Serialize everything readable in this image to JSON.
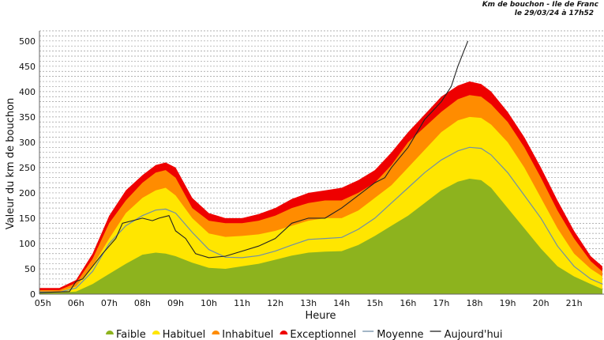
{
  "header": {
    "title": "Km de bouchon - Ile de Franc",
    "subtitle": "le 29/03/24 à 17h52"
  },
  "chart_data": {
    "type": "area",
    "xlabel": "Heure",
    "ylabel": "Valeur du  km de bouchon",
    "ylim": [
      0,
      520
    ],
    "xlim": [
      4.9,
      21.9
    ],
    "yticks": [
      0,
      50,
      100,
      150,
      200,
      250,
      300,
      350,
      400,
      450,
      500
    ],
    "xticks": [
      {
        "v": 5,
        "label": "05h"
      },
      {
        "v": 6,
        "label": "06h"
      },
      {
        "v": 7,
        "label": "07h"
      },
      {
        "v": 8,
        "label": "08h"
      },
      {
        "v": 9,
        "label": "09h"
      },
      {
        "v": 10,
        "label": "10h"
      },
      {
        "v": 11,
        "label": "11h"
      },
      {
        "v": 12,
        "label": "12h"
      },
      {
        "v": 13,
        "label": "13h"
      },
      {
        "v": 14,
        "label": "14h"
      },
      {
        "v": 15,
        "label": "15h"
      },
      {
        "v": 16,
        "label": "16h"
      },
      {
        "v": 17,
        "label": "17h"
      },
      {
        "v": 18,
        "label": "18h"
      },
      {
        "v": 19,
        "label": "19h"
      },
      {
        "v": 20,
        "label": "20h"
      },
      {
        "v": 21,
        "label": "21h"
      }
    ],
    "grid": "horizontal dashed every 10",
    "legend_position": "bottom",
    "x": [
      4.9,
      5.5,
      6,
      6.5,
      7,
      7.5,
      8,
      8.4,
      8.7,
      9,
      9.5,
      10,
      10.5,
      11,
      11.5,
      12,
      12.5,
      13,
      13.5,
      14,
      14.5,
      15,
      15.5,
      16,
      16.5,
      17,
      17.5,
      17.85,
      18.2,
      18.5,
      19,
      19.5,
      20,
      20.5,
      21,
      21.5,
      21.85
    ],
    "series": [
      {
        "name": "Exceptionnel",
        "color": "#ee0000",
        "kind": "area",
        "values": [
          12,
          12,
          28,
          80,
          155,
          205,
          235,
          255,
          260,
          250,
          190,
          160,
          150,
          150,
          158,
          170,
          188,
          200,
          205,
          210,
          225,
          245,
          280,
          320,
          355,
          390,
          412,
          420,
          415,
          400,
          360,
          310,
          250,
          185,
          125,
          75,
          55
        ]
      },
      {
        "name": "Inhabituel",
        "color": "#ff8c00",
        "kind": "area",
        "values": [
          8,
          8,
          22,
          70,
          140,
          185,
          220,
          240,
          245,
          230,
          170,
          145,
          140,
          140,
          145,
          155,
          170,
          180,
          185,
          185,
          200,
          220,
          255,
          300,
          330,
          360,
          385,
          393,
          390,
          375,
          340,
          290,
          230,
          165,
          110,
          65,
          45
        ]
      },
      {
        "name": "Habituel",
        "color": "#ffe600",
        "kind": "area",
        "values": [
          5,
          5,
          15,
          55,
          110,
          160,
          190,
          205,
          210,
          195,
          150,
          120,
          113,
          115,
          118,
          125,
          135,
          145,
          150,
          150,
          165,
          190,
          215,
          250,
          285,
          320,
          343,
          350,
          348,
          335,
          300,
          250,
          190,
          130,
          80,
          50,
          35
        ]
      },
      {
        "name": "Faible",
        "color": "#8db31e",
        "kind": "area",
        "values": [
          3,
          3,
          5,
          20,
          40,
          60,
          78,
          82,
          80,
          75,
          62,
          52,
          50,
          55,
          60,
          68,
          76,
          82,
          84,
          85,
          97,
          115,
          135,
          155,
          180,
          205,
          222,
          228,
          225,
          210,
          170,
          130,
          90,
          55,
          35,
          20,
          10
        ]
      },
      {
        "name": "Moyenne",
        "color": "#6f8fa8",
        "kind": "line",
        "values": [
          4,
          4,
          12,
          45,
          100,
          135,
          155,
          166,
          168,
          160,
          122,
          88,
          73,
          72,
          76,
          85,
          97,
          108,
          110,
          112,
          128,
          150,
          180,
          210,
          240,
          265,
          283,
          290,
          288,
          275,
          240,
          195,
          150,
          95,
          55,
          30,
          20
        ]
      },
      {
        "name": "Aujourd'hui",
        "color": "#222222",
        "kind": "line",
        "x": [
          4.9,
          5.8,
          6,
          6.2,
          6.5,
          6.8,
          7,
          7.2,
          7.4,
          7.7,
          8,
          8.3,
          8.5,
          8.8,
          9,
          9.3,
          9.6,
          10,
          10.5,
          11,
          11.5,
          12,
          12.5,
          13,
          13.5,
          14,
          14.5,
          15,
          15.3,
          15.5,
          16,
          16.5,
          17,
          17.3,
          17.5,
          17.8
        ],
        "values": [
          3,
          5,
          25,
          30,
          55,
          80,
          95,
          110,
          140,
          145,
          150,
          145,
          150,
          155,
          125,
          110,
          80,
          72,
          75,
          85,
          95,
          110,
          140,
          150,
          150,
          170,
          195,
          220,
          230,
          250,
          290,
          345,
          380,
          410,
          450,
          500
        ]
      }
    ]
  }
}
